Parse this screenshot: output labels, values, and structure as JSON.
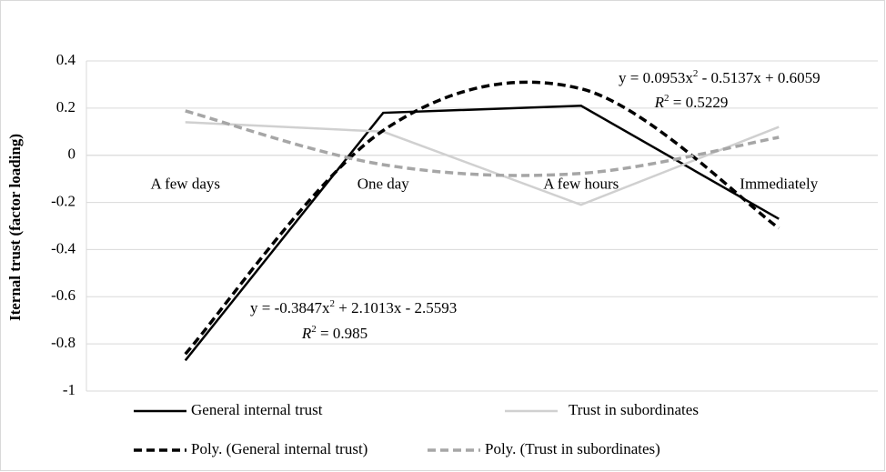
{
  "chart_data": {
    "type": "line",
    "y_label": "Iternal trust (factor loading)",
    "categories": [
      "A few days",
      "One day",
      "A few hours",
      "Immediately"
    ],
    "ylim": [
      -1,
      0.4
    ],
    "yticks": [
      0.4,
      0.2,
      0,
      -0.2,
      -0.4,
      -0.6,
      -0.8,
      -1
    ],
    "grid": true,
    "series": [
      {
        "name": "General internal trust",
        "color": "#000000",
        "dashed": false,
        "values": [
          -0.87,
          0.18,
          0.21,
          -0.27
        ]
      },
      {
        "name": "Trust in subordinates",
        "color": "#d0d0d0",
        "dashed": false,
        "values": [
          0.14,
          0.1,
          -0.21,
          0.12
        ]
      },
      {
        "name": "Poly. (General internal trust)",
        "color": "#000000",
        "dashed": true,
        "values": [
          -0.843,
          0.105,
          0.282,
          -0.309
        ]
      },
      {
        "name": "Poly. (Trust in subordinates)",
        "color": "#a6a6a6",
        "dashed": true,
        "values": [
          0.188,
          -0.04,
          -0.077,
          0.076
        ]
      }
    ],
    "annotations": [
      {
        "equation": [
          "y = -0.3847x",
          "2",
          " + 2.1013x - 2.5593"
        ],
        "r2": [
          "R",
          "2",
          " = 0.985"
        ]
      },
      {
        "equation": [
          "y = 0.0953x",
          "2",
          " - 0.5137x + 0.6059"
        ],
        "r2": [
          "R",
          "2",
          " = 0.5229"
        ]
      }
    ]
  }
}
